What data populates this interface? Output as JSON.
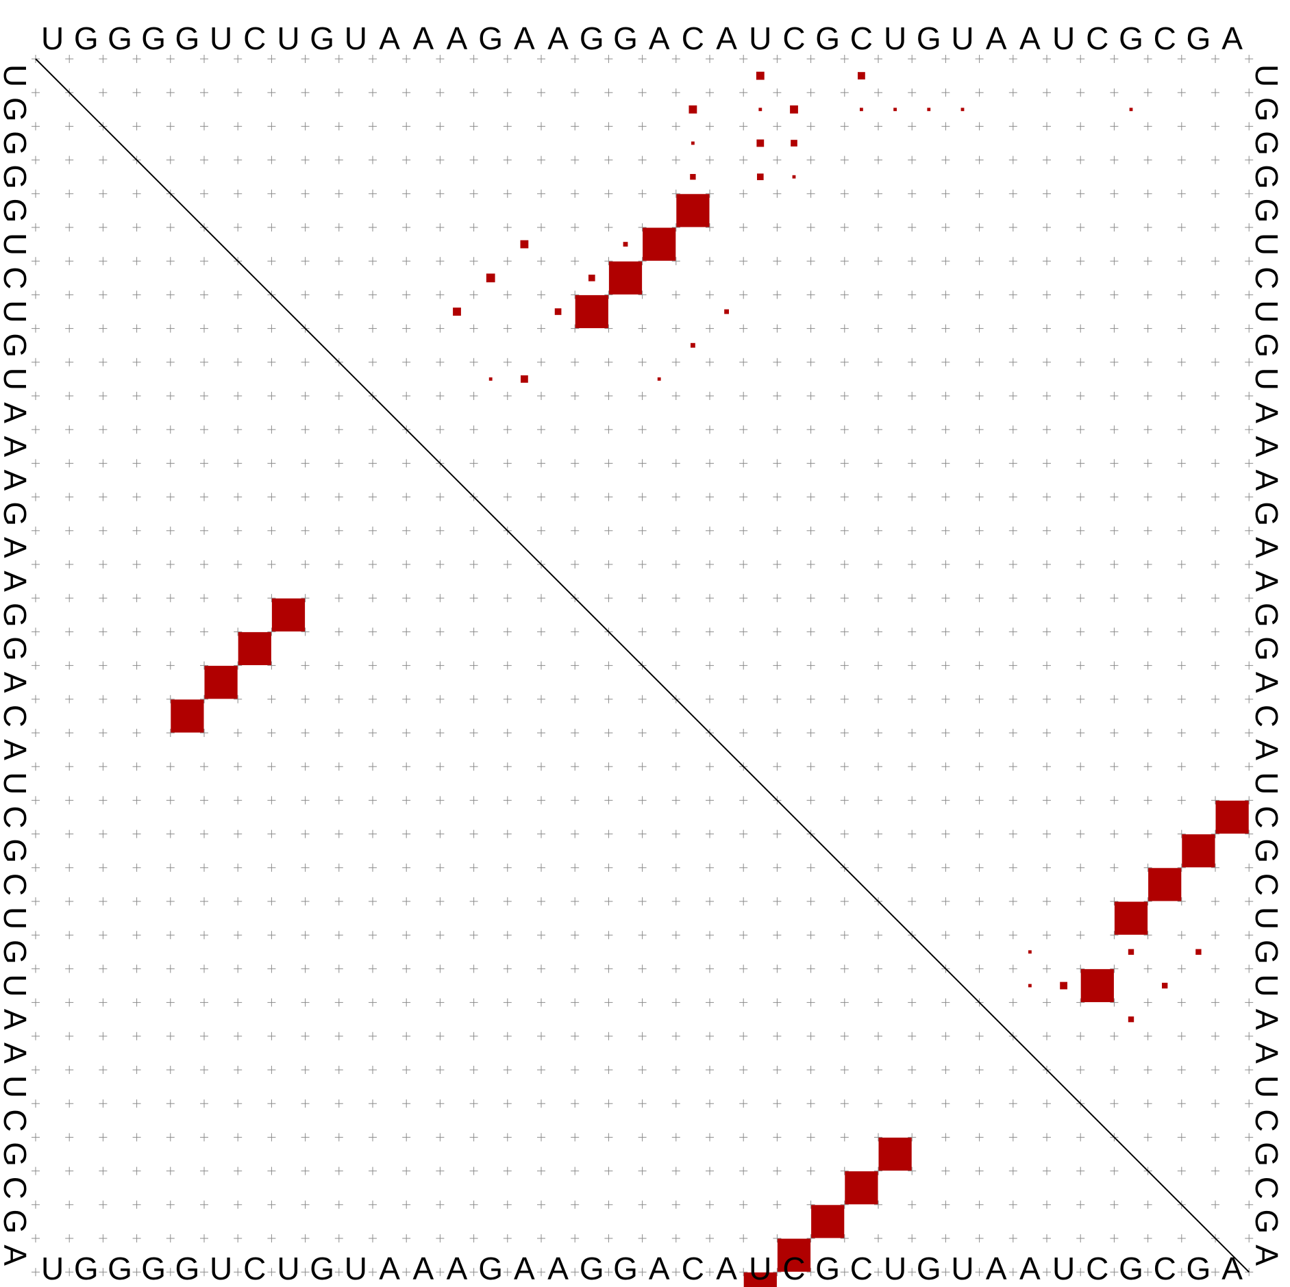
{
  "sequence": "UGGGGUCUGUAAAGAAGGACAUCGCUGUAAUCGCGA",
  "pair_color": "#b00000",
  "upper_probabilities": [
    [
      1,
      22,
      0.06
    ],
    [
      1,
      25,
      0.05
    ],
    [
      2,
      20,
      0.06
    ],
    [
      2,
      22,
      0.01
    ],
    [
      2,
      23,
      0.06
    ],
    [
      2,
      25,
      0.01
    ],
    [
      2,
      26,
      0.01
    ],
    [
      2,
      27,
      0.01
    ],
    [
      2,
      28,
      0.01
    ],
    [
      2,
      33,
      0.01
    ],
    [
      3,
      20,
      0.01
    ],
    [
      3,
      22,
      0.05
    ],
    [
      3,
      23,
      0.04
    ],
    [
      4,
      20,
      0.03
    ],
    [
      4,
      22,
      0.04
    ],
    [
      4,
      23,
      0.01
    ],
    [
      5,
      20,
      1.0
    ],
    [
      6,
      15,
      0.06
    ],
    [
      6,
      18,
      0.02
    ],
    [
      6,
      19,
      1.0
    ],
    [
      7,
      14,
      0.07
    ],
    [
      7,
      17,
      0.04
    ],
    [
      7,
      18,
      1.0
    ],
    [
      8,
      13,
      0.06
    ],
    [
      8,
      16,
      0.04
    ],
    [
      8,
      17,
      1.0
    ],
    [
      8,
      21,
      0.02
    ],
    [
      9,
      20,
      0.02
    ],
    [
      10,
      14,
      0.01
    ],
    [
      10,
      15,
      0.05
    ],
    [
      10,
      19,
      0.01
    ]
  ],
  "lower_mfe_pairs": [
    [
      17,
      8
    ],
    [
      18,
      7
    ],
    [
      19,
      6
    ],
    [
      20,
      5
    ],
    [
      23,
      36
    ],
    [
      24,
      35
    ],
    [
      25,
      34
    ],
    [
      26,
      33
    ],
    [
      28,
      32
    ],
    [
      33,
      26
    ],
    [
      34,
      25
    ],
    [
      35,
      24
    ],
    [
      36,
      23
    ],
    [
      37,
      22
    ]
  ],
  "lower_small_dots": [
    [
      27,
      33,
      0.03
    ],
    [
      28,
      31,
      0.05
    ],
    [
      28,
      34,
      0.03
    ],
    [
      29,
      33,
      0.03
    ],
    [
      27,
      35,
      0.03
    ],
    [
      27,
      30,
      0.01
    ],
    [
      28,
      30,
      0.01
    ]
  ]
}
